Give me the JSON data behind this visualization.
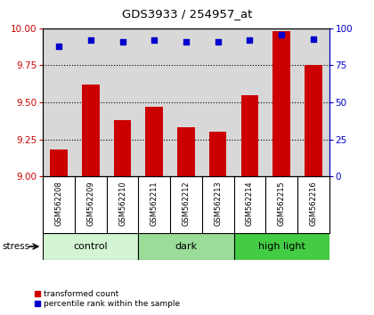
{
  "title": "GDS3933 / 254957_at",
  "samples": [
    "GSM562208",
    "GSM562209",
    "GSM562210",
    "GSM562211",
    "GSM562212",
    "GSM562213",
    "GSM562214",
    "GSM562215",
    "GSM562216"
  ],
  "red_values": [
    9.18,
    9.62,
    9.38,
    9.47,
    9.33,
    9.3,
    9.55,
    9.98,
    9.75
  ],
  "blue_values": [
    88,
    92,
    91,
    92,
    91,
    91,
    92,
    96,
    93
  ],
  "groups": [
    {
      "label": "control",
      "start": 0,
      "end": 3,
      "color": "#d4f5d4"
    },
    {
      "label": "dark",
      "start": 3,
      "end": 6,
      "color": "#99dd99"
    },
    {
      "label": "high light",
      "start": 6,
      "end": 9,
      "color": "#44cc44"
    }
  ],
  "ylim_left": [
    9.0,
    10.0
  ],
  "ylim_right": [
    0,
    100
  ],
  "yticks_left": [
    9.0,
    9.25,
    9.5,
    9.75,
    10.0
  ],
  "yticks_right": [
    0,
    25,
    50,
    75,
    100
  ],
  "bar_color": "#cc0000",
  "dot_color": "#0000cc",
  "background_color": "#ffffff",
  "plot_bg_color": "#d8d8d8",
  "stress_label": "stress",
  "legend_red": "transformed count",
  "legend_blue": "percentile rank within the sample",
  "bar_width": 0.55,
  "dot_size": 18
}
